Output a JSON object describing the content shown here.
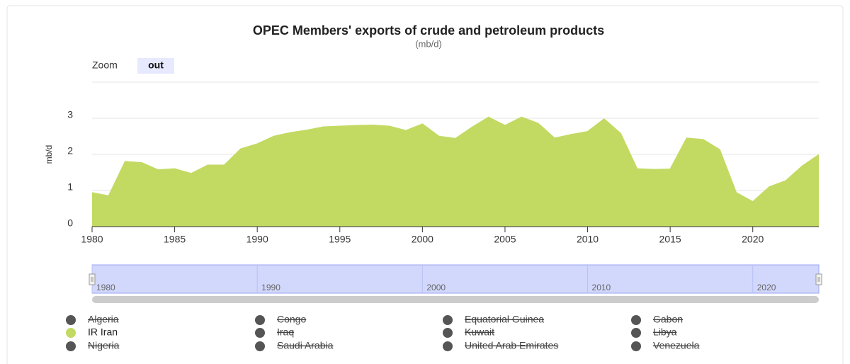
{
  "chart_data": {
    "type": "area",
    "title": "OPEC Members' exports of crude and petroleum products",
    "subtitle": "(mb/d)",
    "y_axis_label": "mb/d",
    "zoom_label": "Zoom",
    "zoom_button": "out",
    "x": [
      1980,
      1981,
      1982,
      1983,
      1984,
      1985,
      1986,
      1987,
      1988,
      1989,
      1990,
      1991,
      1992,
      1993,
      1994,
      1995,
      1996,
      1997,
      1998,
      1999,
      2000,
      2001,
      2002,
      2003,
      2004,
      2005,
      2006,
      2007,
      2008,
      2009,
      2010,
      2011,
      2012,
      2013,
      2014,
      2015,
      2016,
      2017,
      2018,
      2019,
      2020,
      2021,
      2022,
      2023,
      2024
    ],
    "xlim": [
      1980,
      2024
    ],
    "xticks": [
      1980,
      1985,
      1990,
      1995,
      2000,
      2005,
      2010,
      2015,
      2020
    ],
    "navigator_ticks": [
      1980,
      1990,
      2000,
      2010,
      2020
    ],
    "ylim": [
      0,
      4
    ],
    "yticks": [
      0,
      1,
      2,
      3
    ],
    "grid": true,
    "hidden_color": "#555555",
    "series": [
      {
        "name": "Algeria",
        "visible": false
      },
      {
        "name": "Congo",
        "visible": false
      },
      {
        "name": "Equatorial Guinea",
        "visible": false
      },
      {
        "name": "Gabon",
        "visible": false
      },
      {
        "name": "IR Iran",
        "visible": true,
        "color": "#c2da62",
        "values": [
          0.94,
          0.85,
          1.8,
          1.77,
          1.57,
          1.6,
          1.47,
          1.7,
          1.7,
          2.15,
          2.29,
          2.5,
          2.6,
          2.67,
          2.76,
          2.78,
          2.8,
          2.81,
          2.78,
          2.66,
          2.84,
          2.5,
          2.44,
          2.75,
          3.03,
          2.8,
          3.03,
          2.86,
          2.45,
          2.55,
          2.63,
          2.98,
          2.58,
          1.6,
          1.58,
          1.59,
          2.45,
          2.41,
          2.13,
          0.94,
          0.69,
          1.1,
          1.27,
          1.68,
          1.99
        ]
      },
      {
        "name": "Iraq",
        "visible": false
      },
      {
        "name": "Kuwait",
        "visible": false
      },
      {
        "name": "Libya",
        "visible": false
      },
      {
        "name": "Nigeria",
        "visible": false
      },
      {
        "name": "Saudi Arabia",
        "visible": false
      },
      {
        "name": "United Arab Emirates",
        "visible": false
      },
      {
        "name": "Venezuela",
        "visible": false
      }
    ]
  }
}
